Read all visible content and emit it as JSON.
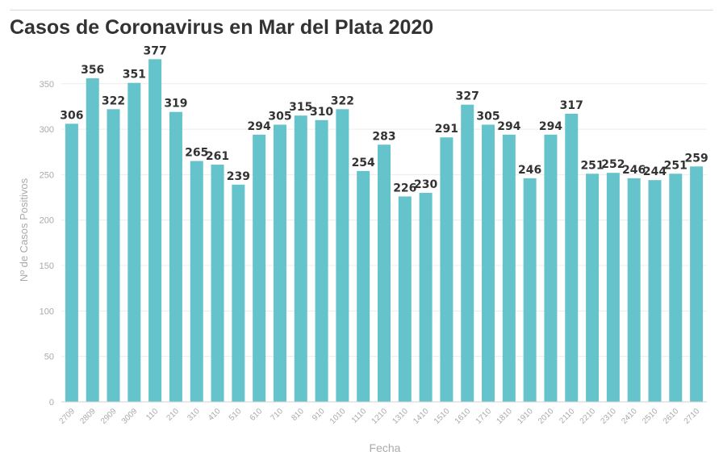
{
  "title": "Casos de Coronavirus en Mar del Plata 2020",
  "chart_data": {
    "type": "bar",
    "title": "Casos de Coronavirus en Mar del Plata 2020",
    "xlabel": "Fecha",
    "ylabel": "Nº de Casos Positivos",
    "ylim": [
      0,
      380
    ],
    "yticks": [
      0,
      50,
      100,
      150,
      200,
      250,
      300,
      350
    ],
    "grid": true,
    "bar_color": "#65c4cb",
    "categories": [
      "2709",
      "2809",
      "2909",
      "3009",
      "110",
      "210",
      "310",
      "410",
      "510",
      "610",
      "710",
      "810",
      "910",
      "1010",
      "1110",
      "1210",
      "1310",
      "1410",
      "1510",
      "1610",
      "1710",
      "1810",
      "1910",
      "2010",
      "2110",
      "2210",
      "2310",
      "2410",
      "2510",
      "2610",
      "2710"
    ],
    "values": [
      306,
      356,
      322,
      351,
      377,
      319,
      265,
      261,
      239,
      294,
      305,
      315,
      310,
      322,
      254,
      283,
      226,
      230,
      291,
      327,
      305,
      294,
      246,
      294,
      317,
      251,
      252,
      246,
      244,
      251,
      259
    ]
  }
}
